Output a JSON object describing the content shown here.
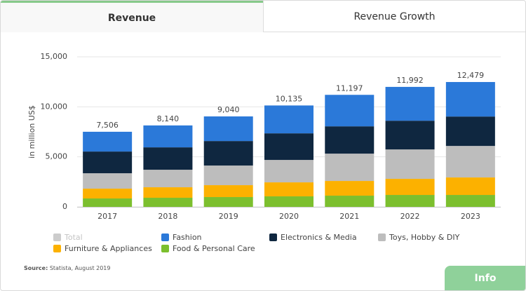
{
  "tabs": [
    "Revenue",
    "Revenue Growth"
  ],
  "info_button": "Info",
  "source_label": "Source:",
  "source": "Statista, August 2019",
  "chart_data": {
    "type": "stacked-bar",
    "ylabel": "in million US$",
    "categories": [
      "2017",
      "2018",
      "2019",
      "2020",
      "2021",
      "2022",
      "2023"
    ],
    "series": [
      {
        "name": "Food & Personal Care",
        "color": "#7cbf2e",
        "values": [
          840,
          910,
          980,
          1050,
          1120,
          1190,
          1190
        ]
      },
      {
        "name": "Furniture & Appliances",
        "color": "#fcb100",
        "values": [
          980,
          1050,
          1190,
          1400,
          1470,
          1610,
          1750
        ]
      },
      {
        "name": "Toys, Hobby & DIY",
        "color": "#bdbdbd",
        "values": [
          1540,
          1750,
          1960,
          2240,
          2730,
          2940,
          3150
        ]
      },
      {
        "name": "Electronics & Media",
        "color": "#0f2740",
        "values": [
          2170,
          2240,
          2450,
          2660,
          2730,
          2870,
          2940
        ]
      },
      {
        "name": "Fashion",
        "color": "#2b79d9",
        "values": [
          1976,
          2190,
          2460,
          2785,
          3147,
          3382,
          3449
        ]
      }
    ],
    "totals": {
      "name": "Total",
      "color": "#cccccc",
      "values": [
        7506,
        8140,
        9040,
        10135,
        11197,
        11992,
        12479
      ],
      "value_labels": [
        "7,506",
        "8,140",
        "9,040",
        "10,135",
        "11,197",
        "11,992",
        "12,479"
      ]
    },
    "ylim": [
      0,
      15000
    ],
    "yticks": [
      0,
      {
        "value": 5000,
        "label": "5,000"
      },
      {
        "value": 10000,
        "label": "10,000"
      },
      {
        "value": 15000,
        "label": "15,000"
      }
    ],
    "grid": true
  }
}
